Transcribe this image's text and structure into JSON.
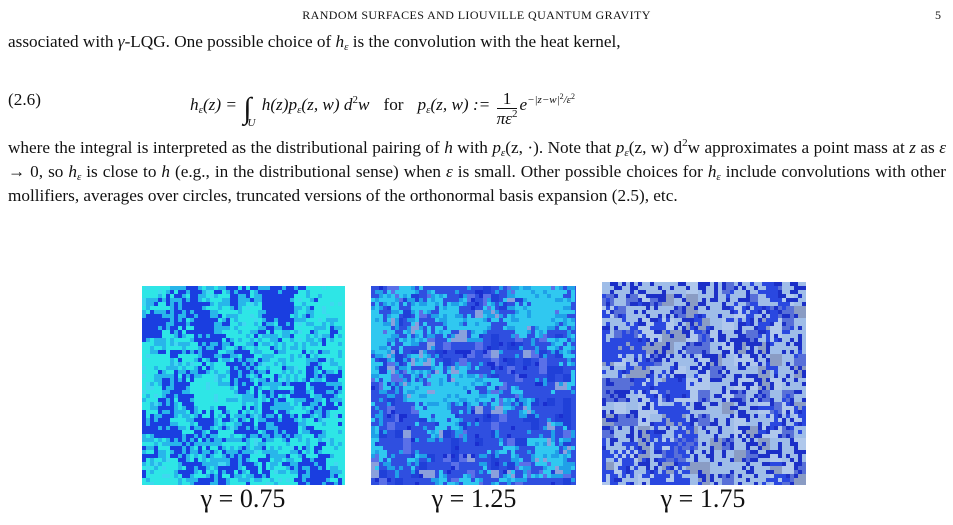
{
  "header": {
    "title": "RANDOM SURFACES AND LIOUVILLE QUANTUM GRAVITY",
    "page_number": "5"
  },
  "paragraph_1": [
    "associated with ",
    "γ",
    "-LQG. One possible choice of ",
    "h",
    "ε",
    " is the convolution with the heat kernel,"
  ],
  "equation": {
    "label": "(2.6)",
    "parts": [
      "h",
      "ε",
      "(z) = ",
      "∫",
      "U",
      " h(z)p",
      "ε",
      "(z, w) d",
      "2",
      "w",
      "for",
      "p",
      "ε",
      "(z, w) := ",
      "1",
      "πε",
      "2",
      "e",
      "−|z−w|",
      "2",
      "/ε",
      "2"
    ]
  },
  "paragraph_2": [
    "where the integral is interpreted as the distributional pairing of ",
    "h",
    " with ",
    "p",
    "ε",
    "(z, ·). Note that ",
    "p",
    "ε",
    "(z, w) d",
    "2",
    "w approximates a point mass at ",
    "z",
    " as ",
    "ε",
    " → 0, so ",
    "h",
    "ε",
    " is close to ",
    "h",
    " (e.g., in the distributional sense) when ",
    "ε",
    " is small. Other possible choices for ",
    "h",
    "ε",
    " include convolutions with other mollifiers, averages over circles, truncated versions of the orthonormal basis expansion (2.5), etc."
  ],
  "figure": {
    "panels": [
      {
        "caption": "γ = 0.75"
      },
      {
        "caption": "γ = 1.25"
      },
      {
        "caption": "γ = 1.75"
      }
    ]
  }
}
